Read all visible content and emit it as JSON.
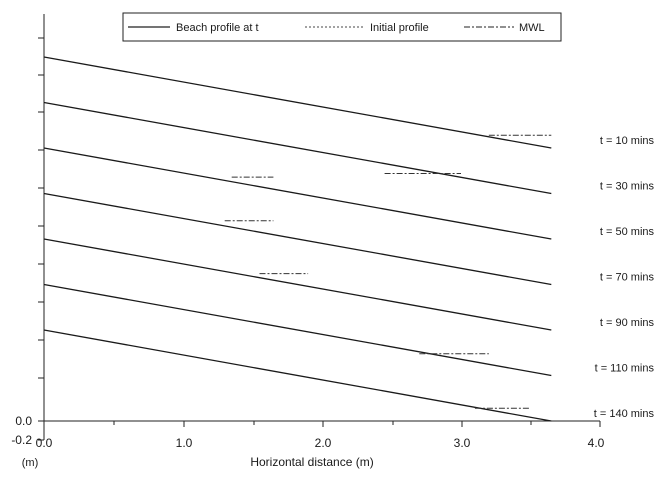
{
  "chart_data": {
    "type": "line",
    "title": "",
    "xlabel": "Horizontal distance (m)",
    "ylabel": "(m)",
    "xlim": [
      0,
      4
    ],
    "ylim": [
      -0.2,
      2.4
    ],
    "x_ticks": [
      "0.0",
      "1.0",
      "2.0",
      "3.0",
      "4.0"
    ],
    "y_ticks": [
      "0.0",
      "-0.2"
    ],
    "grid": false,
    "legend": {
      "position": "top",
      "entries": [
        {
          "label": "Beach profile at t",
          "style": "solid"
        },
        {
          "label": "Initial profile",
          "style": "dotted"
        },
        {
          "label": "MWL",
          "style": "dashdot"
        }
      ]
    },
    "series": [
      {
        "label": "t = 10 mins",
        "profile": [
          [
            0,
            2.0
          ],
          [
            3.65,
            1.5
          ]
        ],
        "mwl": [
          [
            3.2,
            1.57
          ],
          [
            3.65,
            1.57
          ]
        ]
      },
      {
        "label": "t = 30 mins",
        "profile": [
          [
            0,
            1.75
          ],
          [
            3.65,
            1.25
          ]
        ],
        "mwl": [
          [
            2.45,
            1.36
          ],
          [
            3.0,
            1.36
          ]
        ]
      },
      {
        "label": "t = 50 mins",
        "profile": [
          [
            0,
            1.5
          ],
          [
            3.65,
            1.0
          ]
        ],
        "mwl": [
          [
            1.35,
            1.34
          ],
          [
            1.65,
            1.34
          ]
        ]
      },
      {
        "label": "t = 70 mins",
        "profile": [
          [
            0,
            1.25
          ],
          [
            3.65,
            0.75
          ]
        ],
        "mwl": [
          [
            1.3,
            1.1
          ],
          [
            1.65,
            1.1
          ]
        ]
      },
      {
        "label": "t = 90 mins",
        "profile": [
          [
            0,
            1.0
          ],
          [
            3.65,
            0.5
          ]
        ],
        "mwl": [
          [
            1.55,
            0.81
          ],
          [
            1.9,
            0.81
          ]
        ]
      },
      {
        "label": "t = 110 mins",
        "profile": [
          [
            0,
            0.75
          ],
          [
            3.65,
            0.25
          ]
        ],
        "mwl": [
          [
            2.7,
            0.37
          ],
          [
            3.2,
            0.37
          ]
        ]
      },
      {
        "label": "t = 140 mins",
        "profile": [
          [
            0,
            0.5
          ],
          [
            3.65,
            0.0
          ]
        ],
        "mwl": [
          [
            3.1,
            0.07
          ],
          [
            3.5,
            0.07
          ]
        ]
      }
    ]
  }
}
